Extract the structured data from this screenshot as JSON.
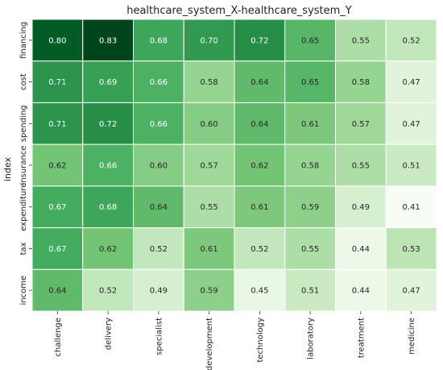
{
  "chart_data": {
    "type": "heatmap",
    "title": "healthcare_system_X-healthcare_system_Y",
    "ylabel": "index",
    "xlabel": "",
    "x_categories": [
      "challenge",
      "delivery",
      "specialist",
      "development",
      "technology",
      "laboratory",
      "treatment",
      "medicine"
    ],
    "y_categories": [
      "financing",
      "cost",
      "spending",
      "insurance",
      "expenditure",
      "tax",
      "income"
    ],
    "values": [
      [
        0.8,
        0.83,
        0.68,
        0.7,
        0.72,
        0.65,
        0.55,
        0.52
      ],
      [
        0.71,
        0.69,
        0.66,
        0.58,
        0.64,
        0.65,
        0.58,
        0.47
      ],
      [
        0.71,
        0.72,
        0.66,
        0.6,
        0.64,
        0.61,
        0.57,
        0.47
      ],
      [
        0.62,
        0.66,
        0.6,
        0.57,
        0.62,
        0.58,
        0.55,
        0.51
      ],
      [
        0.67,
        0.68,
        0.64,
        0.55,
        0.61,
        0.59,
        0.49,
        0.41
      ],
      [
        0.67,
        0.62,
        0.52,
        0.61,
        0.52,
        0.55,
        0.44,
        0.53
      ],
      [
        0.64,
        0.52,
        0.49,
        0.59,
        0.45,
        0.51,
        0.44,
        0.47
      ]
    ],
    "value_format": "2-decimal",
    "colormap": "Greens",
    "colors": {
      "low": "#f7fcf5",
      "mid": "#74c476",
      "high": "#00441b"
    },
    "grid": true,
    "legend": "none"
  }
}
